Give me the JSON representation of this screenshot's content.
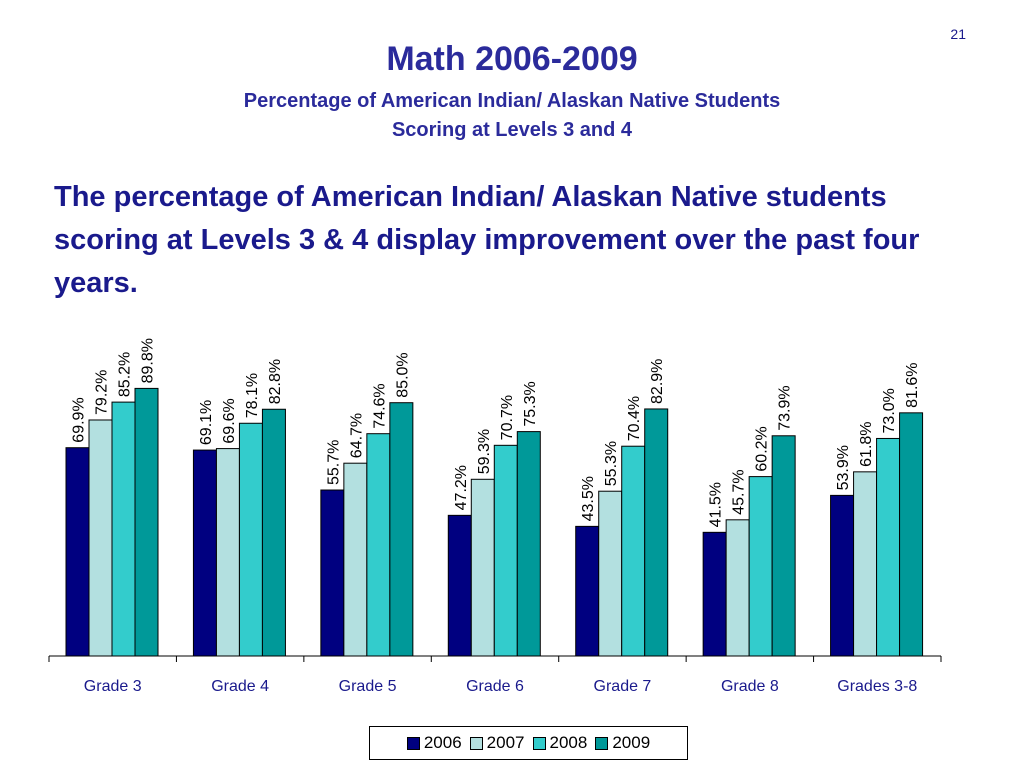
{
  "slide": {
    "page_number": "21",
    "title": "Math 2006-2009",
    "subtitle_line1": "Percentage of American Indian/ Alaskan Native Students",
    "subtitle_line2": "Scoring at Levels 3 and 4",
    "body": "The percentage of American Indian/ Alaskan Native students scoring at Levels 3 & 4 display improvement over the past four years."
  },
  "colors": {
    "2006": "#000080",
    "2007": "#b3e0e0",
    "2008": "#33cccc",
    "2009": "#009999"
  },
  "chart_data": {
    "type": "bar",
    "categories": [
      "Grade 3",
      "Grade 4",
      "Grade 5",
      "Grade 6",
      "Grade 7",
      "Grade 8",
      "Grades 3-8"
    ],
    "series": [
      {
        "name": "2006",
        "values": [
          69.9,
          69.1,
          55.7,
          47.2,
          43.5,
          41.5,
          53.9
        ],
        "labels": [
          "69.9%",
          "69.1%",
          "55.7%",
          "47.2%",
          "43.5%",
          "41.5%",
          "53.9%"
        ]
      },
      {
        "name": "2007",
        "values": [
          79.2,
          69.6,
          64.7,
          59.3,
          55.3,
          45.7,
          61.8
        ],
        "labels": [
          "79.2%",
          "69.6%",
          "64.7%",
          "59.3%",
          "55.3%",
          "45.7%",
          "61.8%"
        ]
      },
      {
        "name": "2008",
        "values": [
          85.2,
          78.1,
          74.6,
          70.7,
          70.4,
          60.2,
          73.0
        ],
        "labels": [
          "85.2%",
          "78.1%",
          "74.6%",
          "70.7%",
          "70.4%",
          "60.2%",
          "73.0%"
        ]
      },
      {
        "name": "2009",
        "values": [
          89.8,
          82.8,
          85.0,
          75.3,
          82.9,
          73.9,
          81.6
        ],
        "labels": [
          "89.8%",
          "82.8%",
          "85.0%",
          "75.3%",
          "82.9%",
          "73.9%",
          "81.6%"
        ]
      }
    ],
    "ylim": [
      0,
      100
    ],
    "grid": false,
    "legend_position": "bottom"
  }
}
